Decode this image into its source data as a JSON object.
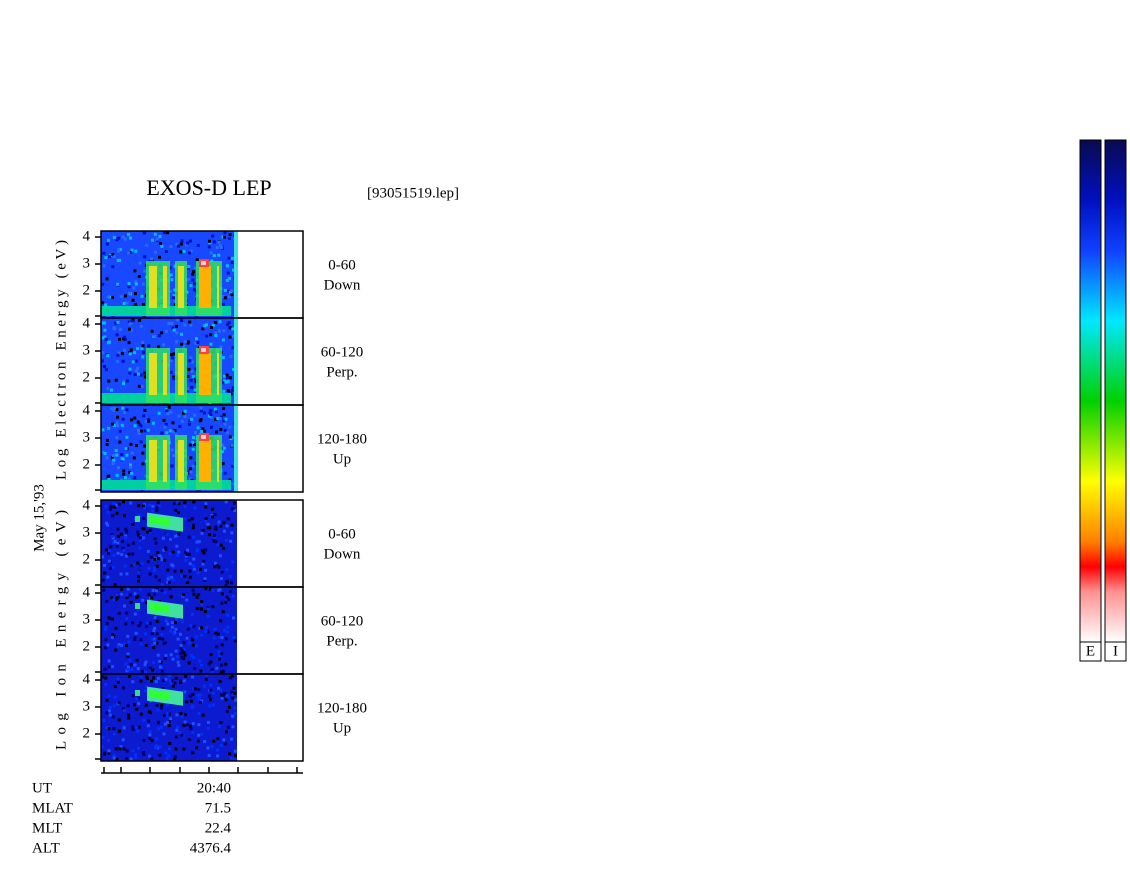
{
  "title": "EXOS-D LEP",
  "file": "[93051519.lep]",
  "date": "May 15,'93",
  "groups": [
    {
      "axis_label": "Log Electron Energy (eV)",
      "panels": [
        {
          "yticks": [
            "4",
            "3",
            "2"
          ],
          "label": [
            "0-60",
            "Down"
          ]
        },
        {
          "yticks": [
            "4",
            "3",
            "2"
          ],
          "label": [
            "60-120",
            "Perp."
          ]
        },
        {
          "yticks": [
            "4",
            "3",
            "2"
          ],
          "label": [
            "120-180",
            "Up"
          ]
        }
      ]
    },
    {
      "axis_label": "Log Ion Energy (eV)",
      "panels": [
        {
          "yticks": [
            "4",
            "3",
            "2"
          ],
          "label": [
            "0-60",
            "Down"
          ]
        },
        {
          "yticks": [
            "4",
            "3",
            "2"
          ],
          "label": [
            "60-120",
            "Perp."
          ]
        },
        {
          "yticks": [
            "4",
            "3",
            "2"
          ],
          "label": [
            "120-180",
            "Up"
          ]
        }
      ]
    }
  ],
  "info": {
    "rows": [
      [
        "UT",
        "20:40"
      ],
      [
        "MLAT",
        "71.5"
      ],
      [
        "MLT",
        "22.4"
      ],
      [
        "ALT",
        "4376.4"
      ]
    ]
  },
  "colorbars": [
    "E",
    "I"
  ]
}
